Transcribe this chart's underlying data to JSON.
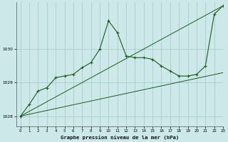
{
  "title": "Graphe pression niveau de la mer (hPa)",
  "bg_color": "#cce8e8",
  "grid_color": "#aacccc",
  "line_color": "#1a5c1a",
  "xlim": [
    -0.5,
    23
  ],
  "ylim": [
    1027.7,
    1031.4
  ],
  "yticks": [
    1028,
    1029,
    1030
  ],
  "xticks": [
    0,
    1,
    2,
    3,
    4,
    5,
    6,
    7,
    8,
    9,
    10,
    11,
    12,
    13,
    14,
    15,
    16,
    17,
    18,
    19,
    20,
    21,
    22,
    23
  ],
  "series1_x": [
    0,
    23
  ],
  "series1_y": [
    1028.0,
    1031.3
  ],
  "series2_x": [
    0,
    23
  ],
  "series2_y": [
    1028.0,
    1029.3
  ],
  "series3_x": [
    0,
    1,
    2,
    3,
    4,
    5,
    6,
    7,
    8,
    9,
    10,
    11,
    12,
    13,
    14,
    15,
    16,
    17,
    18,
    19,
    20,
    21,
    22,
    23
  ],
  "series3_y": [
    1028.0,
    1028.35,
    1028.75,
    1028.85,
    1029.15,
    1029.2,
    1029.25,
    1029.45,
    1029.6,
    1030.0,
    1030.85,
    1030.5,
    1029.8,
    1029.75,
    1029.75,
    1029.7,
    1029.5,
    1029.35,
    1029.2,
    1029.2,
    1029.25,
    1029.5,
    1031.05,
    1031.3
  ]
}
